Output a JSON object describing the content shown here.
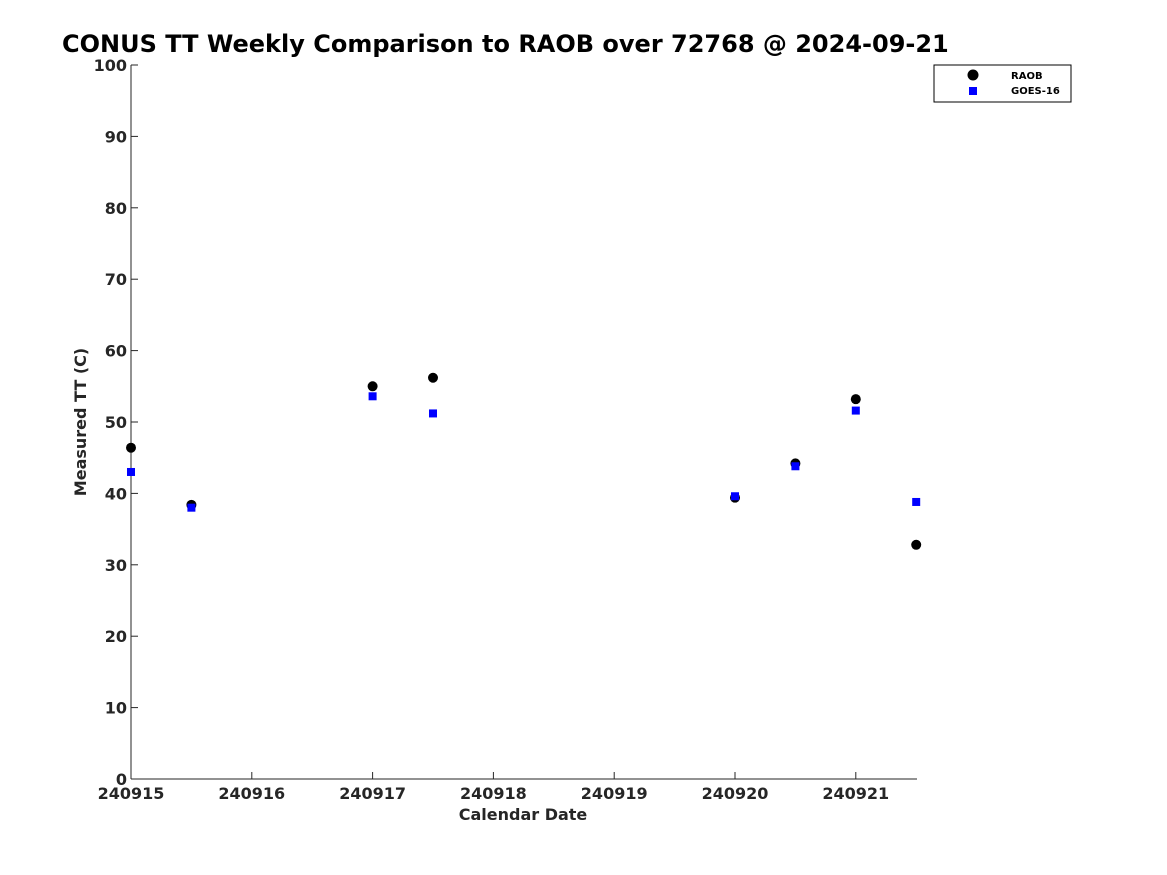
{
  "chart_data": {
    "type": "scatter",
    "title": "CONUS TT Weekly Comparison to RAOB over 72768 @ 2024-09-21",
    "xlabel": "Calendar Date",
    "ylabel": "Measured TT (C)",
    "x_tick_labels": [
      "240915",
      "240916",
      "240917",
      "240918",
      "240919",
      "240920",
      "240921"
    ],
    "y_ticks": [
      0,
      10,
      20,
      30,
      40,
      50,
      60,
      70,
      80,
      90,
      100
    ],
    "xlim": [
      "240915 00Z",
      "240921 12Z"
    ],
    "ylim": [
      0,
      100
    ],
    "grid": false,
    "legend_position": "top-right",
    "series": [
      {
        "name": "RAOB",
        "marker": "circle",
        "color": "#000000",
        "points": [
          {
            "x": "240915 00Z",
            "y": 46.4
          },
          {
            "x": "240915 12Z",
            "y": 38.4
          },
          {
            "x": "240917 00Z",
            "y": 55.0
          },
          {
            "x": "240917 12Z",
            "y": 56.2
          },
          {
            "x": "240920 00Z",
            "y": 39.4
          },
          {
            "x": "240920 12Z",
            "y": 44.2
          },
          {
            "x": "240921 00Z",
            "y": 53.2
          },
          {
            "x": "240921 12Z",
            "y": 32.8
          }
        ]
      },
      {
        "name": "GOES-16",
        "marker": "square",
        "color": "#0000ff",
        "points": [
          {
            "x": "240915 00Z",
            "y": 43.0
          },
          {
            "x": "240915 12Z",
            "y": 38.0
          },
          {
            "x": "240917 00Z",
            "y": 53.6
          },
          {
            "x": "240917 12Z",
            "y": 51.2
          },
          {
            "x": "240920 00Z",
            "y": 39.6
          },
          {
            "x": "240920 12Z",
            "y": 43.8
          },
          {
            "x": "240921 00Z",
            "y": 51.6
          },
          {
            "x": "240921 12Z",
            "y": 38.8
          }
        ]
      }
    ]
  }
}
